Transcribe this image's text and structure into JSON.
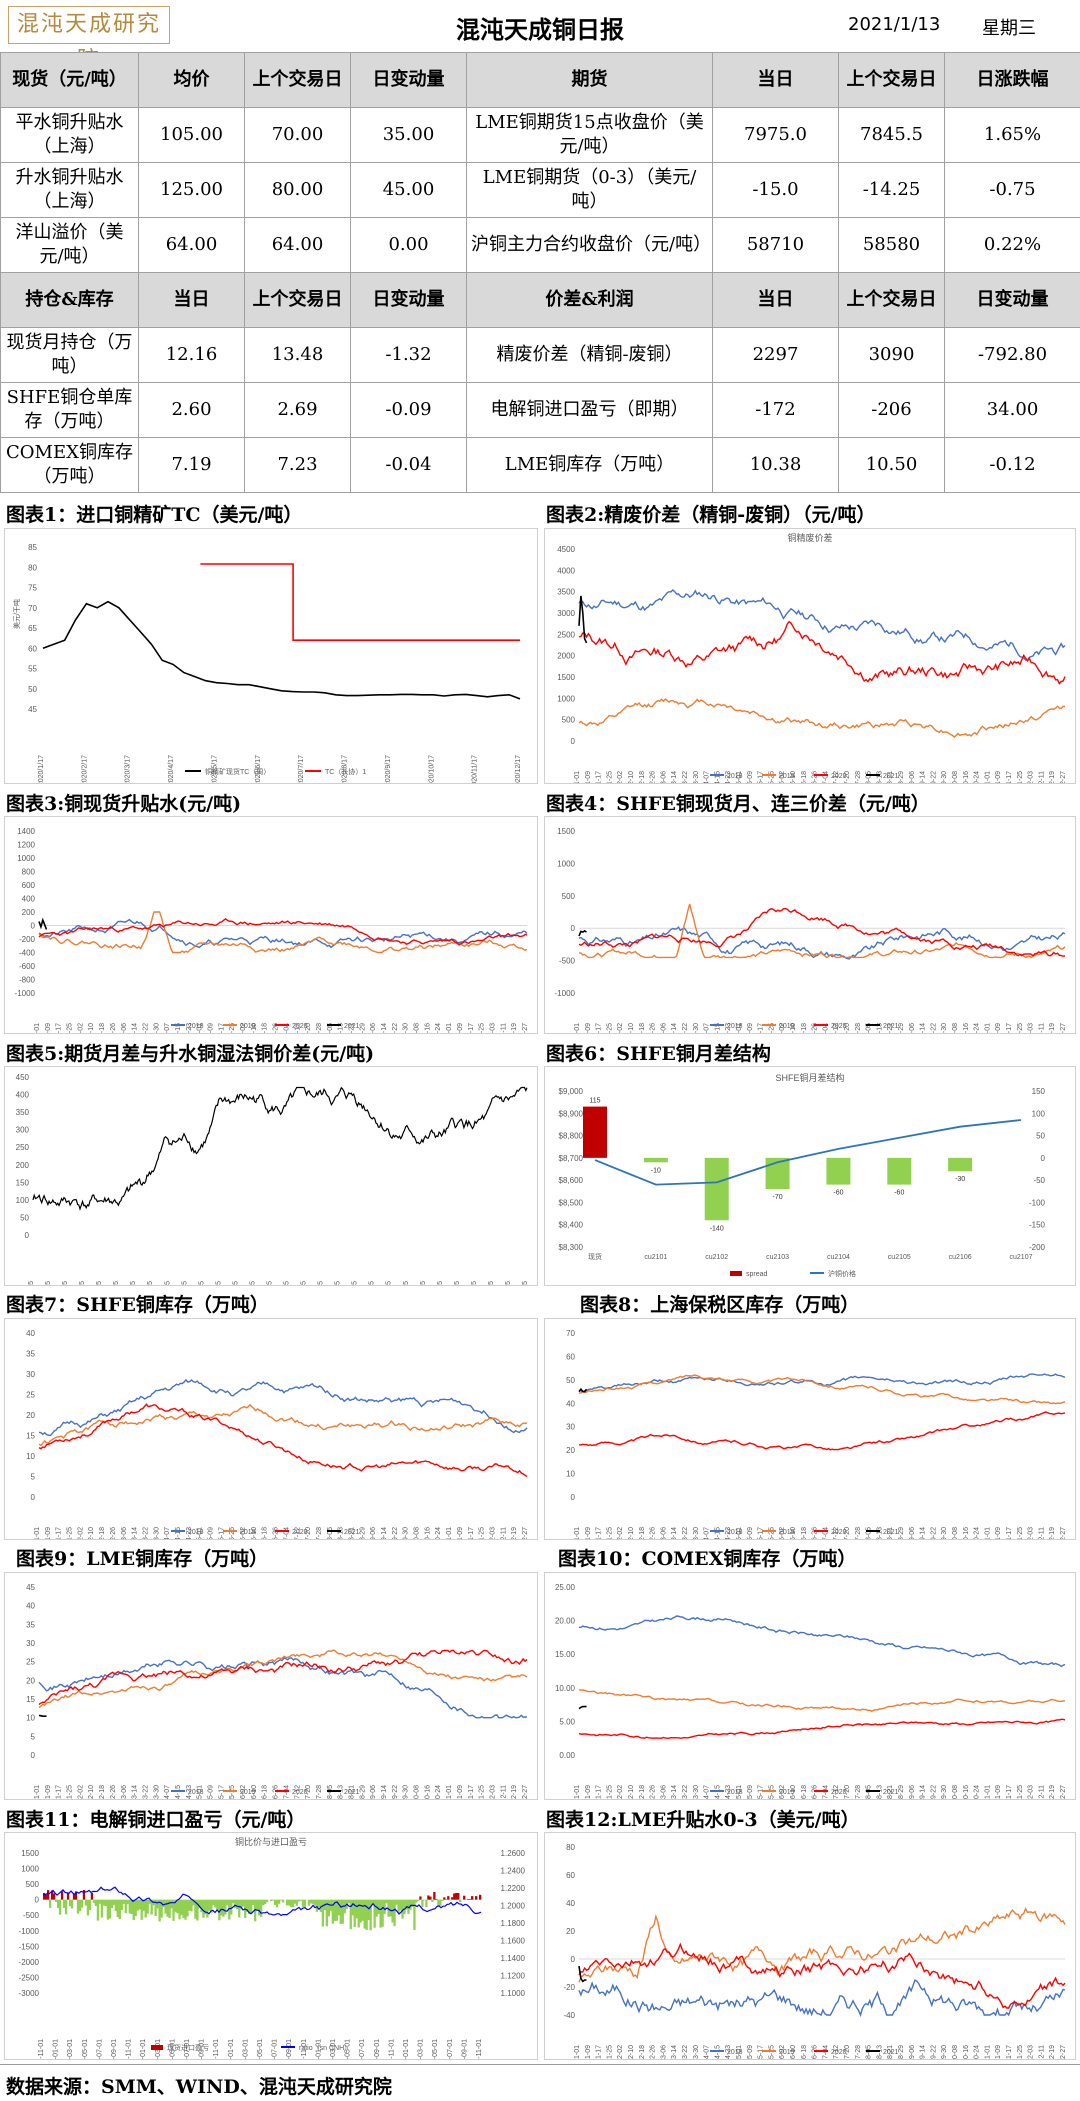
{
  "header": {
    "logo": "混沌天成研究院",
    "title": "混沌天成铜日报",
    "date": "2021/1/13",
    "weekday": "星期三"
  },
  "table": {
    "rows": [
      {
        "hdr": true,
        "c": [
          "现货（元/吨）",
          "均价",
          "上个交易日",
          "日变动量",
          "期货",
          "当日",
          "上个交易日",
          "日涨跌幅"
        ]
      },
      {
        "hdr": false,
        "c": [
          "平水铜升贴水（上海）",
          "105.00",
          "70.00",
          "35.00",
          "LME铜期货15点收盘价（美元/吨）",
          "7975.0",
          "7845.5",
          "1.65%"
        ]
      },
      {
        "hdr": false,
        "c": [
          "升水铜升贴水（上海）",
          "125.00",
          "80.00",
          "45.00",
          "LME铜期货（0-3）（美元/吨）",
          "-15.0",
          "-14.25",
          "-0.75"
        ]
      },
      {
        "hdr": false,
        "c": [
          "洋山溢价（美元/吨）",
          "64.00",
          "64.00",
          "0.00",
          "沪铜主力合约收盘价（元/吨）",
          "58710",
          "58580",
          "0.22%"
        ]
      },
      {
        "hdr": true,
        "c": [
          "持仓&库存",
          "当日",
          "上个交易日",
          "日变动量",
          "价差&利润",
          "当日",
          "上个交易日",
          "日变动量"
        ]
      },
      {
        "hdr": false,
        "c": [
          "现货月持仓（万吨）",
          "12.16",
          "13.48",
          "-1.32",
          "精废价差（精铜-废铜）",
          "2297",
          "3090",
          "-792.80"
        ]
      },
      {
        "hdr": false,
        "c": [
          "SHFE铜仓单库存（万吨）",
          "2.60",
          "2.69",
          "-0.09",
          "电解铜进口盈亏（即期）",
          "-172",
          "-206",
          "34.00"
        ]
      },
      {
        "hdr": false,
        "c": [
          "COMEX铜库存（万吨）",
          "7.19",
          "7.23",
          "-0.04",
          "LME铜库存（万吨）",
          "10.38",
          "10.50",
          "-0.12"
        ]
      }
    ]
  },
  "charts": [
    {
      "title": "图表1：进口铜精矿TC（美元/吨）"
    },
    {
      "title": "图表2:精废价差（精铜-废铜）（元/吨）"
    },
    {
      "title": "图表3:铜现货升贴水(元/吨)"
    },
    {
      "title": "图表4：SHFE铜现货月、连三价差（元/吨）"
    },
    {
      "title": "图表5:期货月差与升水铜湿法铜价差(元/吨)"
    },
    {
      "title": "图表6：SHFE铜月差结构"
    },
    {
      "title": "图表7：SHFE铜库存（万吨）"
    },
    {
      "title": "图表8：上海保税区库存（万吨）"
    },
    {
      "title": "图表9：LME铜库存（万吨）"
    },
    {
      "title": "图表10：COMEX铜库存（万吨）"
    },
    {
      "title": "图表11：电解铜进口盈亏（元/吨）"
    },
    {
      "title": "图表12:LME升贴水0-3（美元/吨）"
    }
  ],
  "colors": {
    "y2018": "#4472c4",
    "y2019": "#ed7d31",
    "y2020": "#ff0000",
    "y2021": "#000000",
    "tc": "#000000",
    "green": "#92d050",
    "red": "#c00000"
  },
  "legend_years": [
    "2018",
    "2019",
    "2020",
    "2021"
  ],
  "chart_data": [
    {
      "type": "line",
      "title": "",
      "ylim": [
        45,
        85
      ],
      "yticks": [
        "85",
        "80",
        "75",
        "70",
        "65",
        "60",
        "55",
        "50",
        "45"
      ],
      "xticks": [
        "2020/1/17",
        "2020/2/17",
        "2020/3/17",
        "2020/4/17",
        "2020/5/17",
        "2020/6/17",
        "2020/7/17",
        "2020/8/17",
        "2020/9/17",
        "2020/10/17",
        "2020/11/17",
        "2020/12/17"
      ],
      "series": [
        {
          "name": "铜精矿现货TC（周）",
          "values": [
            60,
            61,
            62,
            67,
            71,
            70,
            71.5,
            70,
            67,
            64,
            61,
            57,
            56,
            54,
            53,
            52,
            51.5,
            51.3,
            51,
            51,
            50.5,
            50,
            49.5,
            49.3,
            49.2,
            49.2,
            49,
            48.5,
            48.3,
            48.3,
            48.4,
            48.5,
            48.5,
            48.6,
            48.6,
            48.5,
            48.5,
            48.2,
            48.5,
            48.6,
            48.3,
            48,
            48.3,
            48.5,
            47.5
          ]
        },
        {
          "name": "TC（长协）1",
          "values": [
            80.8,
            80.8,
            80.8,
            80.8,
            80.8,
            62,
            62,
            62,
            62,
            62,
            62,
            62,
            62,
            62,
            62,
            62
          ]
        }
      ]
    },
    {
      "type": "line",
      "title": "铜精废价差",
      "ylim": [
        0,
        4500
      ],
      "yticks": [
        "4500",
        "4000",
        "3500",
        "3000",
        "2500",
        "2000",
        "1500",
        "1000",
        "500",
        "0"
      ],
      "xticks": [
        "01-01",
        "01-25",
        "02-18",
        "03-14",
        "04-07",
        "05-01",
        "05-25",
        "06-18",
        "07-12",
        "08-05",
        "08-29",
        "09-22",
        "10-16",
        "11-09",
        "12-03",
        "12-27"
      ],
      "series_names": [
        "2018",
        "2019",
        "2020",
        "2021"
      ]
    },
    {
      "type": "line",
      "title": "",
      "ylim": [
        -1000,
        1400
      ],
      "yticks": [
        "1400",
        "1200",
        "1000",
        "800",
        "600",
        "400",
        "200",
        "0",
        "-200",
        "-400",
        "-600",
        "-800",
        "-1000"
      ],
      "series_names": [
        "2018",
        "2019",
        "2020",
        "2021"
      ]
    },
    {
      "type": "line",
      "title": "",
      "ylim": [
        -1000,
        1500
      ],
      "yticks": [
        "1500",
        "1000",
        "500",
        "0",
        "-500",
        "-1000"
      ],
      "series_names": [
        "2018",
        "2019",
        "2020",
        "2021"
      ]
    },
    {
      "type": "line",
      "title": "",
      "ylim": [
        0,
        450
      ],
      "yticks": [
        "450",
        "400",
        "350",
        "300",
        "250",
        "200",
        "150",
        "100",
        "50",
        "0"
      ]
    },
    {
      "type": "bar",
      "title": "SHFE铜月差结构",
      "categories": [
        "现货",
        "cu2101",
        "cu2102",
        "cu2103",
        "cu2104",
        "cu2105",
        "cu2106",
        "cu2107"
      ],
      "spread": [
        115,
        -10,
        -140,
        -70,
        -60,
        -60,
        -30
      ],
      "spread_labels": [
        "115",
        "-10",
        "-140",
        "-70",
        "-60",
        "-60",
        "-30"
      ],
      "price": [
        8690,
        8580,
        8590,
        8680,
        8740,
        8790,
        8840,
        8870
      ],
      "yleft_ticks": [
        "$9,000",
        "$8,900",
        "$8,800",
        "$8,700",
        "$8,600",
        "$8,500",
        "$8,400",
        "$8,300"
      ],
      "yright_ticks": [
        "150",
        "100",
        "50",
        "0",
        "-50",
        "-100",
        "-150",
        "-200"
      ],
      "legend": [
        "spread",
        "沪铜价格"
      ]
    },
    {
      "type": "line",
      "title": "",
      "ylim": [
        0,
        40
      ],
      "yticks": [
        "40",
        "35",
        "30",
        "25",
        "20",
        "15",
        "10",
        "5",
        "0"
      ],
      "series_names": [
        "2018",
        "2019",
        "2020",
        "2021"
      ]
    },
    {
      "type": "line",
      "title": "",
      "ylim": [
        0,
        70
      ],
      "yticks": [
        "70",
        "60",
        "50",
        "40",
        "30",
        "20",
        "10",
        "0"
      ],
      "series_names": [
        "2018",
        "2019",
        "2020",
        "2021"
      ]
    },
    {
      "type": "line",
      "title": "",
      "ylim": [
        0,
        45
      ],
      "yticks": [
        "45",
        "40",
        "35",
        "30",
        "25",
        "20",
        "15",
        "10",
        "5",
        "0"
      ],
      "series_names": [
        "2018",
        "2019",
        "2020",
        "2021"
      ]
    },
    {
      "type": "line",
      "title": "",
      "ylim": [
        0,
        25
      ],
      "yticks": [
        "25.00",
        "20.00",
        "15.00",
        "10.00",
        "5.00",
        "0.00"
      ],
      "series_names": [
        "2018",
        "2019",
        "2020",
        "2021"
      ]
    },
    {
      "type": "bar",
      "title": "铜比价与进口盈亏",
      "yleft_ticks": [
        "1500",
        "1000",
        "500",
        "0",
        "-500",
        "-1000",
        "-1500",
        "-2000",
        "-2500",
        "-3000"
      ],
      "yright_ticks": [
        "1.2600",
        "1.2400",
        "1.2200",
        "1.2000",
        "1.1800",
        "1.1600",
        "1.1400",
        "1.1200",
        "1.1000"
      ],
      "legend": [
        "现货进口盈亏",
        "ratio（sn CNH）"
      ]
    },
    {
      "type": "line",
      "title": "",
      "ylim": [
        -40,
        80
      ],
      "yticks": [
        "80",
        "60",
        "40",
        "20",
        "0",
        "-20",
        "-40"
      ],
      "series_names": [
        "2018",
        "2019",
        "2020",
        "2021"
      ]
    }
  ],
  "footer": {
    "source": "数据来源：SMM、WIND、混沌天成研究院"
  }
}
